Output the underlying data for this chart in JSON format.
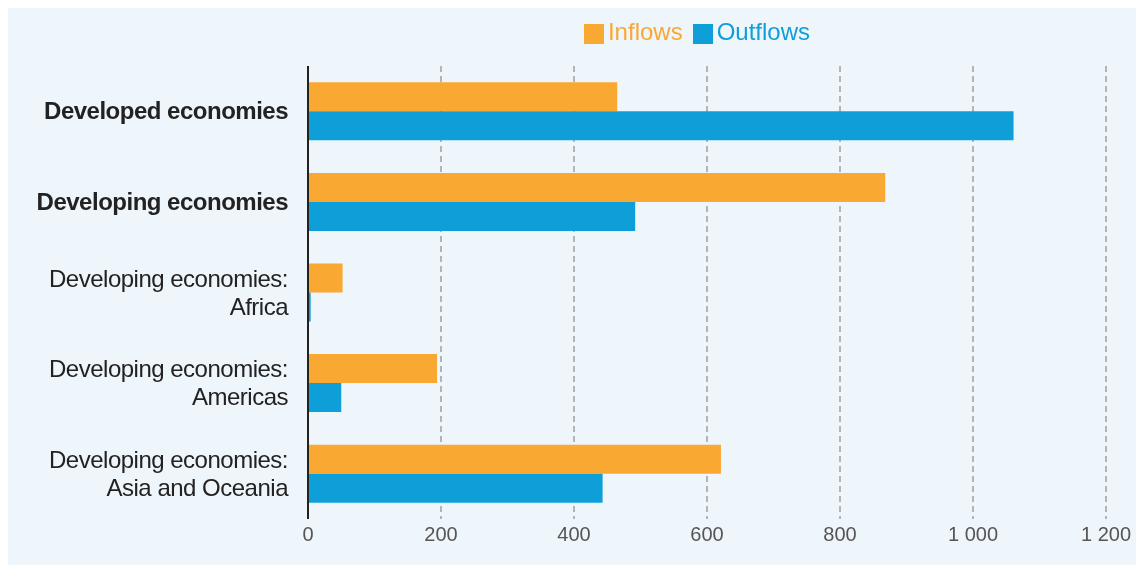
{
  "chart_data": {
    "type": "bar",
    "orientation": "horizontal",
    "categories": [
      "Developed economies",
      "Developing economies",
      "Developing economies: Africa",
      "Developing economies: Americas",
      "Developing economies: Asia and Oceania"
    ],
    "series": [
      {
        "name": "Inflows",
        "color": "#f9a832",
        "values": [
          465,
          868,
          52,
          194,
          621
        ]
      },
      {
        "name": "Outflows",
        "color": "#0f9fd8",
        "values": [
          1061,
          492,
          4,
          50,
          443
        ]
      }
    ],
    "xlim": [
      0,
      1200
    ],
    "xticks": [
      0,
      200,
      400,
      600,
      800,
      {
        "value": 1000,
        "label": "1 000"
      },
      {
        "value": 1200,
        "label": "1 200"
      }
    ],
    "grid": "x",
    "legend": "top"
  }
}
